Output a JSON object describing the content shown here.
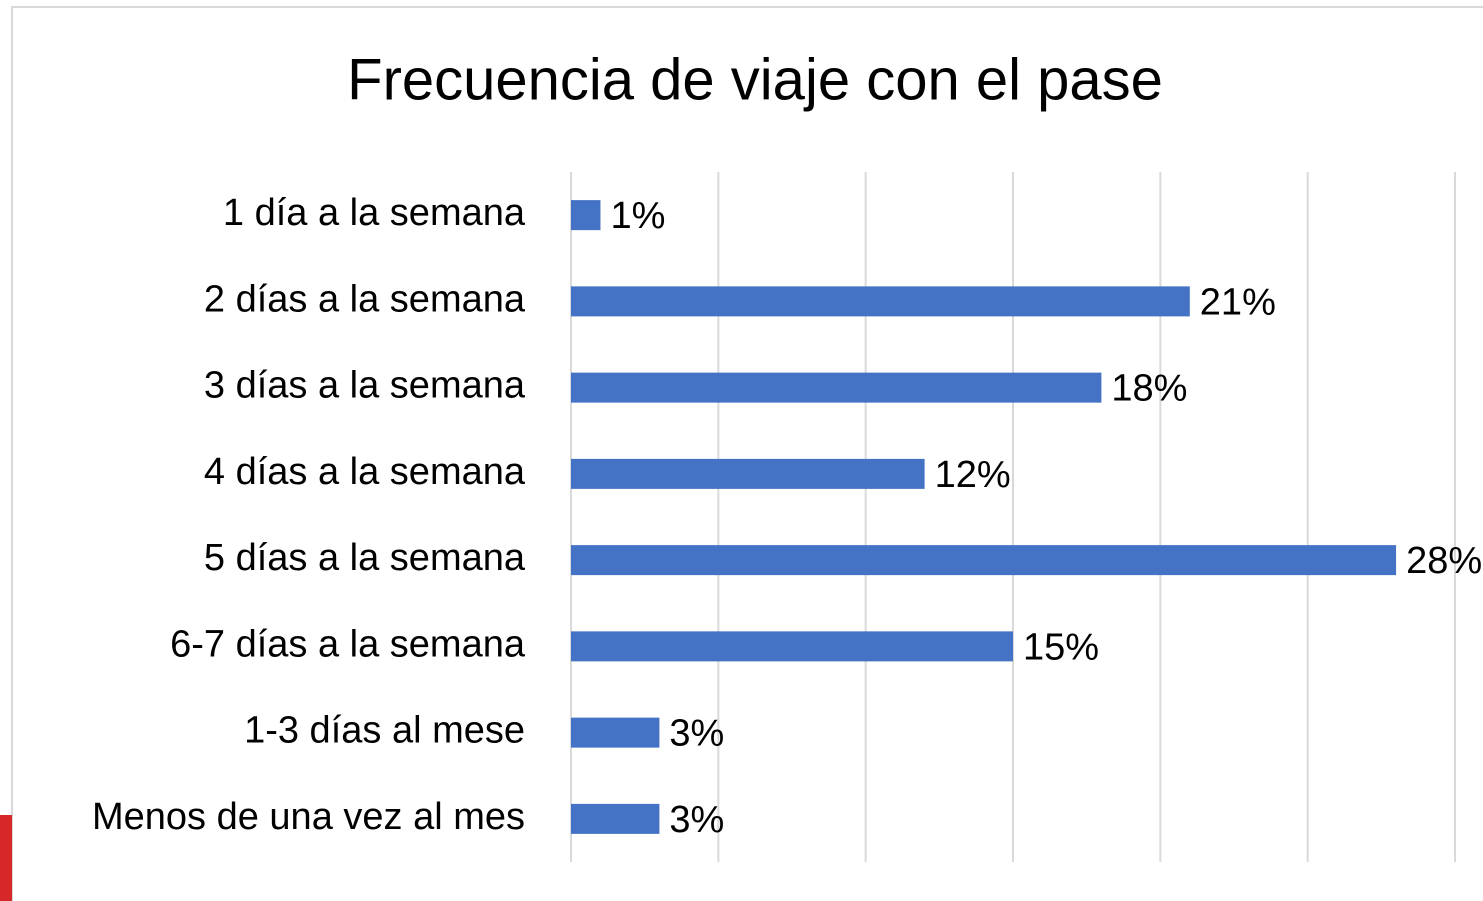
{
  "chart_data": {
    "type": "bar",
    "orientation": "horizontal",
    "title": "Frecuencia de viaje con el pase",
    "categories": [
      "1 día a la semana",
      "2 días a la semana",
      "3 días a la semana",
      "4 días a la semana",
      "5 días a la semana",
      "6-7 días a la semana",
      "1-3 días al mese",
      "Menos de una vez al mes"
    ],
    "values": [
      1,
      21,
      18,
      12,
      28,
      15,
      3,
      3
    ],
    "value_labels": [
      "1%",
      "21%",
      "18%",
      "12%",
      "28%",
      "15%",
      "3%",
      "3%"
    ],
    "color": "#4472c4",
    "xlim": [
      0,
      30
    ],
    "xticks": [
      0,
      5,
      10,
      15,
      20,
      25,
      30
    ],
    "grid": true
  }
}
